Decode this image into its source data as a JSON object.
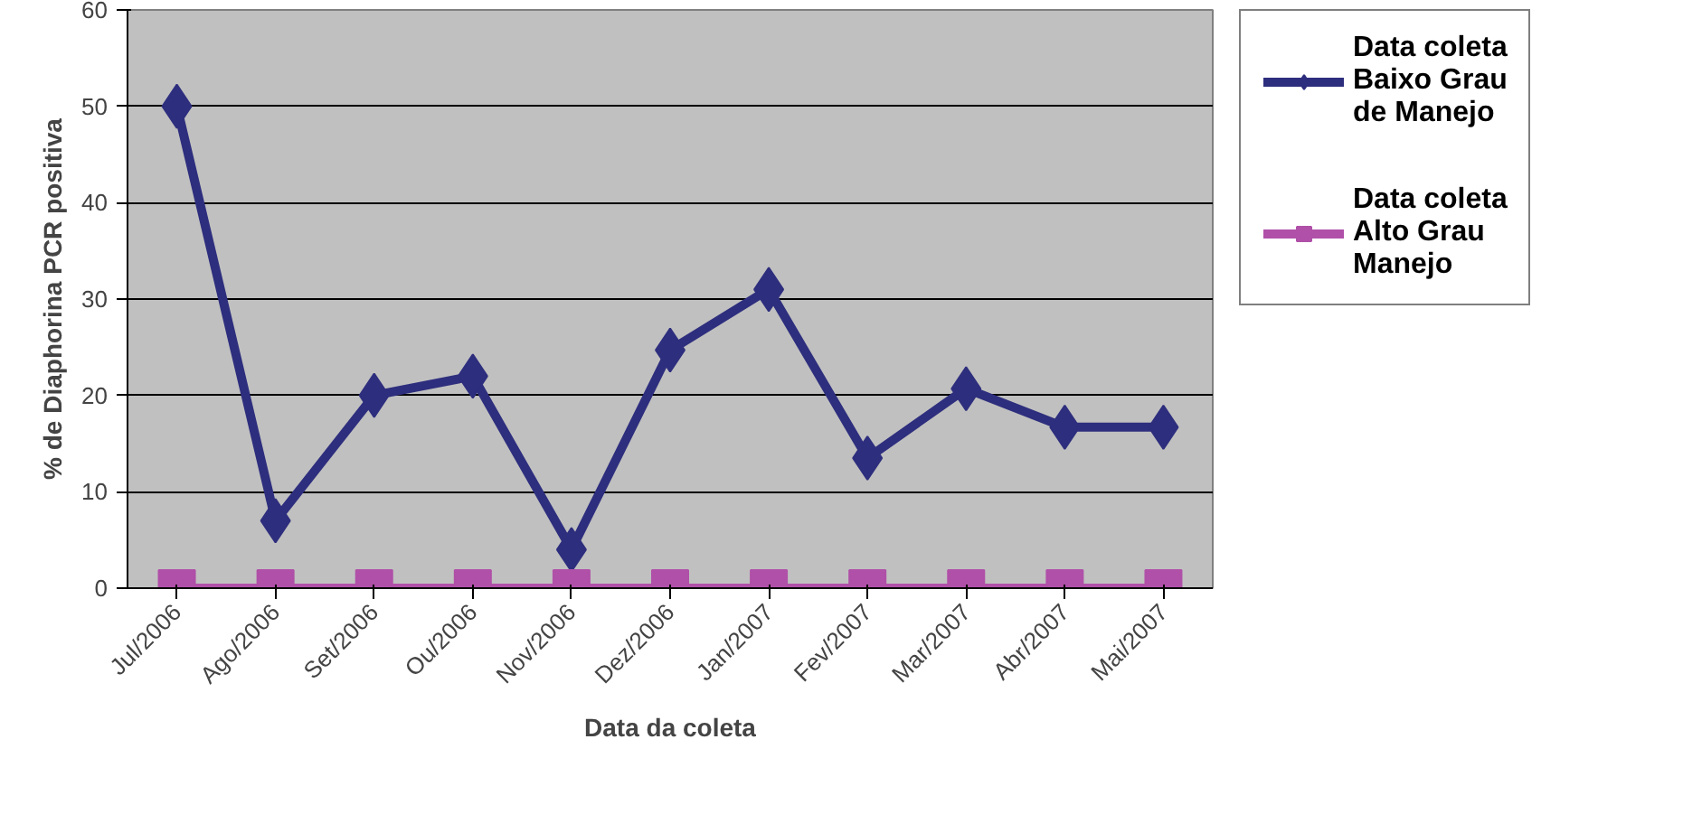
{
  "chart_data": {
    "type": "line",
    "xlabel": "Data da coleta",
    "ylabel": "% de Diaphorina PCR positiva",
    "categories": [
      "Jul/2006",
      "Ago/2006",
      "Set/2006",
      "Ou/2006",
      "Nov/2006",
      "Dez/2006",
      "Jan/2007",
      "Fev/2007",
      "Mar/2007",
      "Abr/2007",
      "Mai/2007"
    ],
    "series": [
      {
        "name": "Data coleta Baixo Grau de Manejo",
        "color": "#2e2e7e",
        "marker": "diamond",
        "values": [
          50,
          7,
          20,
          22,
          4,
          24.7,
          31,
          13.5,
          20.7,
          16.7,
          16.7
        ]
      },
      {
        "name": "Data coleta Alto Grau Manejo",
        "color": "#b050a8",
        "marker": "square",
        "values": [
          0,
          0,
          0,
          0,
          0,
          0,
          0,
          0,
          0,
          0,
          0
        ]
      }
    ],
    "ylim": [
      0,
      60
    ],
    "yticks": [
      0,
      10,
      20,
      30,
      40,
      50,
      60
    ],
    "grid": "y",
    "legend": "right",
    "line_style": "solid"
  }
}
